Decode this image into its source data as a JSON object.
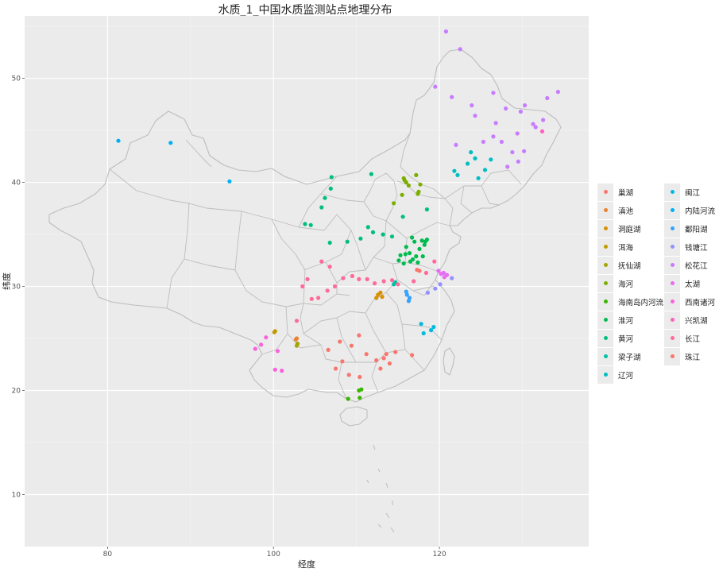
{
  "title": "水质_1_中国水质监测站点地理分布",
  "chart_data": {
    "type": "scatter",
    "title": "水质_1_中国水质监测站点地理分布",
    "xlabel": "经度",
    "ylabel": "纬度",
    "xlim": [
      70,
      138
    ],
    "ylim": [
      5,
      56
    ],
    "x_ticks": [
      80,
      100,
      120
    ],
    "y_ticks": [
      10,
      20,
      30,
      40,
      50
    ],
    "grid": true,
    "legend_position": "right",
    "series": [
      {
        "name": "巢湖",
        "color": "#F8766D",
        "points": [
          [
            117.3,
            31.6
          ],
          [
            117.6,
            31.5
          ]
        ]
      },
      {
        "name": "滇池",
        "color": "#EA8331",
        "points": [
          [
            102.7,
            24.9
          ],
          [
            102.8,
            25.0
          ]
        ]
      },
      {
        "name": "洞庭湖",
        "color": "#D89000",
        "points": [
          [
            112.4,
            28.9
          ],
          [
            112.6,
            29.2
          ],
          [
            112.9,
            29.4
          ],
          [
            113.1,
            29.0
          ]
        ]
      },
      {
        "name": "洱海",
        "color": "#C09B00",
        "points": [
          [
            100.2,
            25.7
          ],
          [
            100.1,
            25.6
          ]
        ]
      },
      {
        "name": "抚仙湖",
        "color": "#A3A500",
        "points": [
          [
            102.9,
            24.5
          ],
          [
            102.8,
            24.3
          ]
        ]
      },
      {
        "name": "海河",
        "color": "#7CAE00",
        "points": [
          [
            115.8,
            40.2
          ],
          [
            116.0,
            40.0
          ],
          [
            117.2,
            40.7
          ],
          [
            117.5,
            39.1
          ],
          [
            117.7,
            39.8
          ],
          [
            114.5,
            38.0
          ],
          [
            115.5,
            38.8
          ],
          [
            116.3,
            39.7
          ],
          [
            117.4,
            38.9
          ],
          [
            115.7,
            40.4
          ]
        ]
      },
      {
        "name": "海南岛内河流",
        "color": "#39B600",
        "points": [
          [
            110.3,
            20.0
          ],
          [
            109.0,
            19.2
          ],
          [
            110.4,
            19.3
          ],
          [
            110.6,
            20.1
          ]
        ]
      },
      {
        "name": "淮河",
        "color": "#00BB4E",
        "points": [
          [
            115.3,
            33.0
          ],
          [
            116.0,
            33.8
          ],
          [
            116.4,
            33.2
          ],
          [
            117.0,
            34.3
          ],
          [
            117.6,
            33.6
          ],
          [
            118.2,
            34.0
          ],
          [
            117.2,
            32.9
          ],
          [
            116.8,
            32.6
          ],
          [
            118.0,
            32.9
          ],
          [
            115.7,
            32.2
          ],
          [
            116.5,
            32.4
          ],
          [
            117.9,
            34.4
          ],
          [
            118.3,
            34.3
          ],
          [
            115.1,
            32.5
          ],
          [
            115.9,
            33.1
          ],
          [
            116.7,
            34.7
          ],
          [
            118.5,
            34.5
          ],
          [
            117.4,
            32.3
          ]
        ]
      },
      {
        "name": "黄河",
        "color": "#00BF7D",
        "points": [
          [
            107.0,
            40.5
          ],
          [
            105.8,
            37.6
          ],
          [
            106.2,
            38.5
          ],
          [
            111.8,
            40.8
          ],
          [
            110.5,
            34.6
          ],
          [
            113.2,
            35.0
          ],
          [
            108.9,
            34.3
          ],
          [
            111.4,
            35.7
          ],
          [
            114.3,
            34.8
          ],
          [
            103.8,
            36.0
          ],
          [
            104.5,
            35.9
          ],
          [
            106.8,
            34.2
          ],
          [
            112.0,
            35.2
          ],
          [
            118.5,
            37.4
          ],
          [
            115.6,
            36.7
          ],
          [
            106.9,
            39.4
          ]
        ]
      },
      {
        "name": "梁子湖",
        "color": "#00C1A3",
        "points": [
          [
            114.5,
            30.2
          ],
          [
            114.7,
            30.4
          ]
        ]
      },
      {
        "name": "辽河",
        "color": "#00BFC4",
        "points": [
          [
            123.4,
            41.8
          ],
          [
            124.3,
            42.3
          ],
          [
            121.8,
            41.1
          ],
          [
            124.7,
            40.4
          ],
          [
            126.2,
            42.2
          ],
          [
            123.8,
            42.9
          ],
          [
            122.2,
            40.7
          ],
          [
            125.5,
            41.2
          ]
        ]
      },
      {
        "name": "闽江",
        "color": "#00BAE0",
        "points": [
          [
            119.3,
            26.1
          ],
          [
            118.1,
            25.5
          ],
          [
            117.8,
            26.4
          ],
          [
            119.0,
            25.8
          ]
        ]
      },
      {
        "name": "内陆河流",
        "color": "#00B0F6",
        "points": [
          [
            87.6,
            43.8
          ],
          [
            81.3,
            44.0
          ],
          [
            94.7,
            40.1
          ]
        ]
      },
      {
        "name": "鄱阳湖",
        "color": "#35A2FF",
        "points": [
          [
            116.1,
            29.2
          ],
          [
            116.4,
            28.9
          ],
          [
            116.0,
            29.5
          ],
          [
            116.3,
            28.6
          ]
        ]
      },
      {
        "name": "钱塘江",
        "color": "#9590FF",
        "points": [
          [
            119.5,
            29.8
          ],
          [
            118.6,
            29.4
          ],
          [
            120.1,
            30.2
          ],
          [
            121.5,
            30.8
          ]
        ]
      },
      {
        "name": "松花江",
        "color": "#C77CFF",
        "points": [
          [
            120.8,
            54.5
          ],
          [
            119.5,
            49.2
          ],
          [
            122.5,
            52.8
          ],
          [
            126.5,
            48.6
          ],
          [
            128.0,
            47.1
          ],
          [
            124.3,
            46.4
          ],
          [
            126.8,
            45.7
          ],
          [
            129.8,
            46.8
          ],
          [
            132.5,
            46.0
          ],
          [
            131.3,
            45.6
          ],
          [
            127.5,
            43.9
          ],
          [
            129.4,
            44.7
          ],
          [
            125.3,
            43.9
          ],
          [
            126.5,
            44.4
          ],
          [
            123.9,
            47.4
          ],
          [
            121.5,
            48.2
          ],
          [
            122.0,
            43.6
          ],
          [
            130.3,
            47.4
          ],
          [
            133.0,
            48.1
          ],
          [
            134.3,
            48.7
          ],
          [
            128.8,
            42.9
          ],
          [
            128.2,
            41.5
          ],
          [
            129.5,
            42.0
          ],
          [
            131.6,
            45.3
          ],
          [
            130.2,
            43.0
          ]
        ]
      },
      {
        "name": "太湖",
        "color": "#E76BF3",
        "points": [
          [
            120.2,
            31.2
          ],
          [
            120.5,
            31.3
          ],
          [
            120.9,
            31.1
          ],
          [
            119.9,
            31.5
          ],
          [
            120.6,
            30.9
          ]
        ]
      },
      {
        "name": "西南诸河",
        "color": "#FA62DB",
        "points": [
          [
            100.2,
            22.0
          ],
          [
            98.5,
            24.4
          ],
          [
            99.1,
            25.1
          ],
          [
            101.0,
            21.9
          ],
          [
            97.8,
            24.0
          ],
          [
            100.5,
            23.8
          ]
        ]
      },
      {
        "name": "兴凯湖",
        "color": "#FF62BC",
        "points": [
          [
            132.4,
            44.9
          ]
        ]
      },
      {
        "name": "长江",
        "color": "#FF6A98",
        "points": [
          [
            104.1,
            30.7
          ],
          [
            105.4,
            28.9
          ],
          [
            106.5,
            29.6
          ],
          [
            107.4,
            30.0
          ],
          [
            108.4,
            30.8
          ],
          [
            110.3,
            30.7
          ],
          [
            111.3,
            30.7
          ],
          [
            112.2,
            30.3
          ],
          [
            113.3,
            30.5
          ],
          [
            114.3,
            30.6
          ],
          [
            115.0,
            30.2
          ],
          [
            116.9,
            30.5
          ],
          [
            118.4,
            31.3
          ],
          [
            119.4,
            32.4
          ],
          [
            102.8,
            26.7
          ],
          [
            104.6,
            28.8
          ],
          [
            106.8,
            31.9
          ],
          [
            109.5,
            31.0
          ],
          [
            103.5,
            30.0
          ],
          [
            105.8,
            32.4
          ]
        ]
      },
      {
        "name": "珠江",
        "color": "#F8766D",
        "points": [
          [
            113.3,
            23.1
          ],
          [
            114.0,
            22.6
          ],
          [
            112.4,
            22.9
          ],
          [
            110.3,
            25.3
          ],
          [
            111.2,
            23.5
          ],
          [
            108.3,
            22.8
          ],
          [
            109.4,
            24.3
          ],
          [
            106.6,
            23.9
          ],
          [
            113.6,
            23.5
          ],
          [
            114.7,
            23.7
          ],
          [
            116.7,
            23.4
          ],
          [
            112.9,
            22.1
          ],
          [
            110.4,
            21.3
          ],
          [
            107.5,
            22.1
          ],
          [
            109.1,
            21.5
          ],
          [
            108.0,
            24.7
          ]
        ]
      }
    ]
  }
}
